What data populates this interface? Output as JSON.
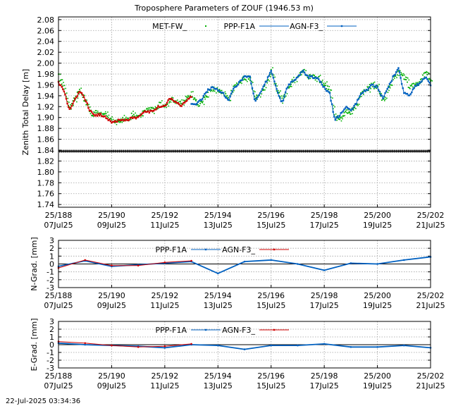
{
  "chart_data": [
    {
      "type": "scatter",
      "title": "Troposphere Parameters of ZOUF (1946.53 m)",
      "ylabel": "Zenith Total Delay [m]",
      "xlabel": "",
      "xlim": [
        188,
        202
      ],
      "ylim": [
        1.735,
        2.085
      ],
      "yticks": [
        "2.08",
        "2.06",
        "2.04",
        "2.02",
        "2.00",
        "1.98",
        "1.96",
        "1.94",
        "1.92",
        "1.90",
        "1.88",
        "1.86",
        "1.84",
        "1.82",
        "1.80",
        "1.78",
        "1.76",
        "1.74"
      ],
      "xticks_top": [
        "25/188",
        "25/190",
        "25/192",
        "25/194",
        "25/196",
        "25/198",
        "25/200",
        "25/202"
      ],
      "xticks_bottom": [
        "07Jul25",
        "09Jul25",
        "11Jul25",
        "13Jul25",
        "15Jul25",
        "17Jul25",
        "19Jul25",
        "21Jul25"
      ],
      "grid": true,
      "legend_position": "top-center",
      "series": [
        {
          "name": "MET-FW_",
          "color": "#00b000",
          "style": "points",
          "jitter": 0.004,
          "range": [
            188,
            202
          ],
          "x": [
            188.0,
            188.2,
            188.4,
            188.6,
            188.8,
            189.0,
            189.2,
            189.4,
            189.6,
            189.8,
            190.0,
            190.2,
            190.4,
            190.6,
            190.8,
            191.0,
            191.2,
            191.4,
            191.6,
            191.8,
            192.0,
            192.2,
            192.4,
            192.6,
            192.8,
            193.0,
            193.2,
            193.4,
            193.6,
            193.8,
            194.0,
            194.2,
            194.4,
            194.6,
            194.8,
            195.0,
            195.2,
            195.4,
            195.6,
            195.8,
            196.0,
            196.2,
            196.4,
            196.6,
            196.8,
            197.0,
            197.2,
            197.4,
            197.6,
            197.8,
            198.0,
            198.2,
            198.4,
            198.6,
            198.8,
            199.0,
            199.2,
            199.4,
            199.6,
            199.8,
            200.0,
            200.2,
            200.4,
            200.6,
            200.8,
            201.0,
            201.2,
            201.4,
            201.6,
            201.8,
            202.0
          ],
          "values": [
            1.975,
            1.955,
            1.92,
            1.935,
            1.95,
            1.93,
            1.905,
            1.91,
            1.905,
            1.905,
            1.895,
            1.895,
            1.895,
            1.9,
            1.905,
            1.9,
            1.91,
            1.915,
            1.915,
            1.925,
            1.92,
            1.935,
            1.93,
            1.925,
            1.935,
            1.945,
            1.925,
            1.93,
            1.945,
            1.955,
            1.95,
            1.945,
            1.935,
            1.955,
            1.965,
            1.975,
            1.975,
            1.935,
            1.945,
            1.965,
            1.985,
            1.95,
            1.93,
            1.955,
            1.965,
            1.975,
            1.985,
            1.975,
            1.975,
            1.97,
            1.96,
            1.95,
            1.895,
            1.9,
            1.915,
            1.91,
            1.925,
            1.945,
            1.95,
            1.96,
            1.955,
            1.93,
            1.955,
            1.975,
            1.985,
            1.975,
            1.955,
            1.96,
            1.965,
            1.985,
            1.965
          ]
        },
        {
          "name": "PPP-F1A",
          "color": "#000000",
          "style": "points",
          "jitter": 0,
          "range": [
            188,
            202
          ],
          "x": [
            188,
            202
          ],
          "values": [
            1.838,
            1.838
          ]
        },
        {
          "name": "AGN-F3_",
          "color": "#0060c0",
          "style": "line-points",
          "jitter": 0.002,
          "range": [
            193,
            202
          ],
          "x": [
            193.0,
            193.2,
            193.4,
            193.6,
            193.8,
            194.0,
            194.2,
            194.4,
            194.6,
            194.8,
            195.0,
            195.2,
            195.4,
            195.6,
            195.8,
            196.0,
            196.2,
            196.4,
            196.6,
            196.8,
            197.0,
            197.2,
            197.4,
            197.6,
            197.8,
            198.0,
            198.2,
            198.4,
            198.6,
            198.8,
            199.0,
            199.2,
            199.4,
            199.6,
            199.8,
            200.0,
            200.2,
            200.4,
            200.6,
            200.8,
            201.0,
            201.2,
            201.4,
            201.6,
            201.8,
            202.0
          ],
          "values": [
            1.925,
            1.925,
            1.935,
            1.95,
            1.955,
            1.95,
            1.945,
            1.93,
            1.955,
            1.965,
            1.975,
            1.975,
            1.93,
            1.945,
            1.965,
            1.985,
            1.955,
            1.925,
            1.955,
            1.965,
            1.975,
            1.985,
            1.975,
            1.975,
            1.97,
            1.955,
            1.945,
            1.895,
            1.905,
            1.92,
            1.915,
            1.925,
            1.945,
            1.95,
            1.96,
            1.955,
            1.935,
            1.955,
            1.975,
            1.99,
            1.945,
            1.94,
            1.955,
            1.965,
            1.975,
            1.96
          ]
        },
        {
          "name": "",
          "color": "#d00000",
          "style": "line-points",
          "jitter": 0.002,
          "range": [
            188,
            193
          ],
          "x": [
            188.0,
            188.2,
            188.4,
            188.6,
            188.8,
            189.0,
            189.2,
            189.4,
            189.6,
            189.8,
            190.0,
            190.2,
            190.4,
            190.6,
            190.8,
            191.0,
            191.2,
            191.4,
            191.6,
            191.8,
            192.0,
            192.2,
            192.4,
            192.6,
            192.8,
            193.0
          ],
          "values": [
            1.965,
            1.95,
            1.915,
            1.93,
            1.95,
            1.935,
            1.91,
            1.905,
            1.905,
            1.9,
            1.89,
            1.895,
            1.895,
            1.895,
            1.9,
            1.9,
            1.91,
            1.91,
            1.915,
            1.92,
            1.92,
            1.935,
            1.93,
            1.92,
            1.93,
            1.94
          ]
        }
      ]
    },
    {
      "type": "line",
      "ylabel": "N-Grad. [mm]",
      "xlim": [
        188,
        202
      ],
      "ylim": [
        -3,
        3
      ],
      "yticks": [
        "3",
        "2",
        "1",
        "0",
        "-1",
        "-2",
        "-3"
      ],
      "xticks_top": [
        "25/188",
        "25/190",
        "25/192",
        "25/194",
        "25/196",
        "25/198",
        "25/200",
        "25/202"
      ],
      "xticks_bottom": [
        "07Jul25",
        "09Jul25",
        "11Jul25",
        "13Jul25",
        "15Jul25",
        "17Jul25",
        "19Jul25",
        "21Jul25"
      ],
      "grid": true,
      "zero_line": true,
      "legend_position": "top-center",
      "series": [
        {
          "name": "PPP-F1A",
          "color": "#0060c0",
          "x": [
            188,
            189,
            190,
            191,
            192,
            193,
            194,
            195,
            196,
            197,
            198,
            199,
            200,
            201,
            202
          ],
          "values": [
            -0.3,
            0.4,
            -0.3,
            -0.1,
            0.1,
            0.3,
            -1.2,
            0.3,
            0.5,
            0.0,
            -0.8,
            0.1,
            0.0,
            0.5,
            0.9
          ]
        },
        {
          "name": "AGN-F3_",
          "color": "#d00000",
          "x": [
            188,
            189,
            190,
            191,
            192,
            193
          ],
          "values": [
            -0.5,
            0.5,
            -0.2,
            -0.2,
            0.2,
            0.4
          ]
        }
      ]
    },
    {
      "type": "line",
      "ylabel": "E-Grad. [mm]",
      "xlim": [
        188,
        202
      ],
      "ylim": [
        -3,
        3
      ],
      "yticks": [
        "3",
        "2",
        "1",
        "0",
        "-1",
        "-2",
        "-3"
      ],
      "xticks_top": [
        "25/188",
        "25/190",
        "25/192",
        "25/194",
        "25/196",
        "25/198",
        "25/200",
        "25/202"
      ],
      "xticks_bottom": [
        "07Jul25",
        "09Jul25",
        "11Jul25",
        "13Jul25",
        "15Jul25",
        "17Jul25",
        "19Jul25",
        "21Jul25"
      ],
      "grid": true,
      "zero_line": true,
      "legend_position": "top-center",
      "series": [
        {
          "name": "PPP-F1A",
          "color": "#0060c0",
          "x": [
            188,
            189,
            190,
            191,
            192,
            193,
            194,
            195,
            196,
            197,
            198,
            199,
            200,
            201,
            202
          ],
          "values": [
            0.2,
            0.0,
            -0.1,
            -0.2,
            -0.4,
            0.0,
            -0.1,
            -0.6,
            -0.1,
            -0.1,
            0.1,
            -0.3,
            -0.3,
            -0.1,
            -0.4
          ]
        },
        {
          "name": "AGN-F3_",
          "color": "#d00000",
          "x": [
            188,
            189,
            190,
            191,
            192,
            193
          ],
          "values": [
            0.4,
            0.2,
            -0.1,
            -0.3,
            -0.2,
            0.1
          ]
        }
      ]
    }
  ],
  "footer": {
    "timestamp": "22-Jul-2025 03:34:36"
  }
}
